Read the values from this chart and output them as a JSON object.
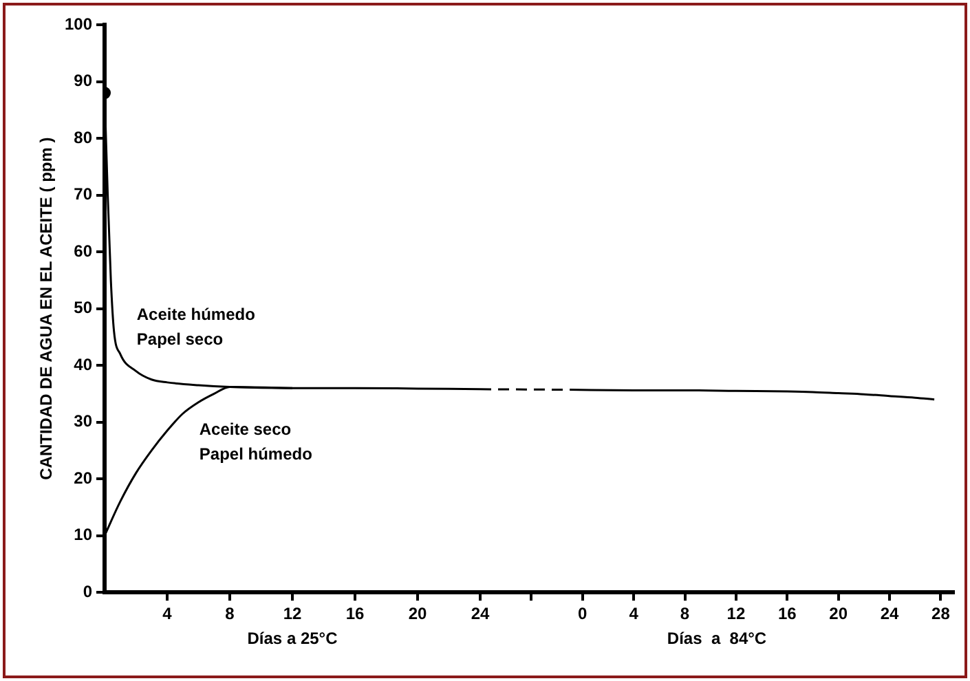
{
  "chart_data": [
    {
      "type": "line",
      "ylabel": "CANTIDAD DE AGUA EN EL ACEITE ( ppm )",
      "xlabel": "Días a 25°C",
      "xlim": [
        0,
        24
      ],
      "ylim": [
        0,
        100
      ],
      "xticks": [
        4,
        8,
        12,
        16,
        20,
        24
      ],
      "yticks": [
        0,
        10,
        20,
        30,
        40,
        50,
        60,
        70,
        80,
        90,
        100
      ],
      "grid": false,
      "legend": false,
      "marker": "none",
      "line_style": "solid",
      "series": [
        {
          "name": "Aceite húmedo\nPapel seco",
          "color": "#000000",
          "x": [
            0,
            0.2,
            0.4,
            0.6,
            1,
            2,
            3,
            4,
            6,
            8,
            12,
            16,
            20,
            24
          ],
          "values": [
            88,
            70,
            55,
            46,
            42,
            39,
            37.5,
            37,
            36.5,
            36.2,
            36,
            36,
            35.9,
            35.8
          ]
        },
        {
          "name": "Aceite seco\nPapel húmedo",
          "color": "#000000",
          "x": [
            0,
            1,
            2,
            3,
            4,
            5,
            6,
            7,
            8,
            12
          ],
          "values": [
            10,
            16,
            21,
            25,
            28.5,
            31.5,
            33.5,
            35,
            36.2,
            36
          ]
        },
        {
          "type": "scatter",
          "marker": "circle",
          "color": "#000000",
          "x": [
            0
          ],
          "values": [
            88
          ]
        }
      ]
    },
    {
      "type": "line",
      "xlabel": "Días  a  84°C",
      "xlim": [
        -8,
        29
      ],
      "ylim": [
        0,
        100
      ],
      "tick_labels": "x",
      "xticks": [
        {
          "value": -4,
          "label": null
        },
        0,
        4,
        8,
        12,
        16,
        20,
        24,
        28
      ],
      "grid": false,
      "legend": false,
      "marker": "none",
      "line_style": "solid",
      "series": [
        {
          "color": "#000000",
          "line_style": "dashed",
          "x": [
            -8,
            -1
          ],
          "values": [
            35.8,
            35.7
          ]
        },
        {
          "color": "#000000",
          "x": [
            -1,
            4,
            8,
            12,
            16,
            18,
            20,
            22,
            24,
            26,
            27.5
          ],
          "values": [
            35.7,
            35.6,
            35.6,
            35.5,
            35.4,
            35.3,
            35.1,
            34.9,
            34.6,
            34.3,
            34.0
          ]
        }
      ]
    }
  ]
}
